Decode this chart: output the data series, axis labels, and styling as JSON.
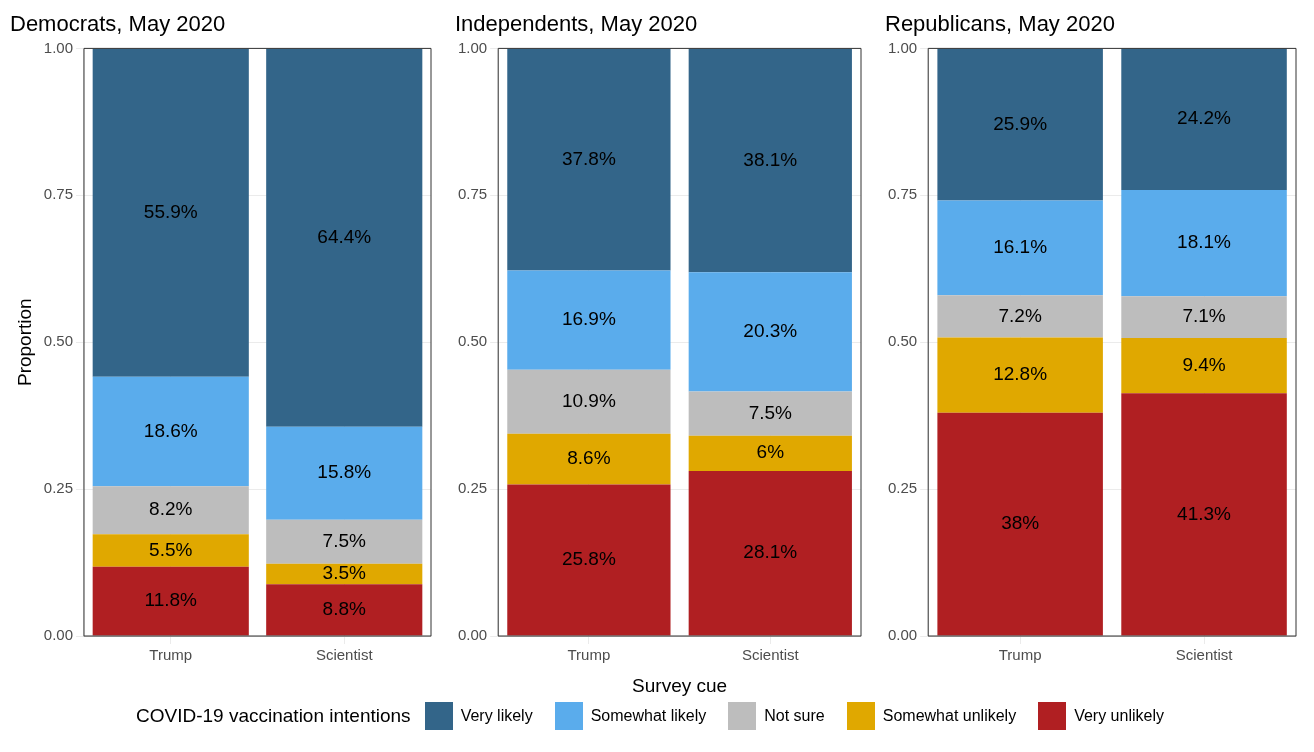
{
  "chart_data": [
    {
      "type": "bar",
      "title": "Democrats, May 2020",
      "ylabel": "Proportion",
      "categories": [
        "Trump",
        "Scientist"
      ],
      "stacked": true,
      "ylim": [
        0,
        1
      ],
      "yticks": [
        {
          "value": 0,
          "label": "0.00"
        },
        {
          "value": 0.25,
          "label": "0.25"
        },
        {
          "value": 0.5,
          "label": "0.50"
        },
        {
          "value": 0.75,
          "label": "0.75"
        },
        {
          "value": 1,
          "label": "1.00"
        }
      ],
      "grid": true,
      "legend": false,
      "series": [
        {
          "color": "#b01f22",
          "values": [
            0.118,
            0.088
          ],
          "value_labels": [
            "11.8%",
            "8.8%"
          ]
        },
        {
          "color": "#e0a800",
          "values": [
            0.055,
            0.035
          ],
          "value_labels": [
            "5.5%",
            "3.5%"
          ]
        },
        {
          "color": "#bdbdbd",
          "values": [
            0.082,
            0.075
          ],
          "value_labels": [
            "8.2%",
            "7.5%"
          ]
        },
        {
          "color": "#5aacec",
          "values": [
            0.186,
            0.158
          ],
          "value_labels": [
            "18.6%",
            "15.8%"
          ]
        },
        {
          "color": "#336589",
          "values": [
            0.559,
            0.644
          ],
          "value_labels": [
            "55.9%",
            "64.4%"
          ]
        }
      ]
    },
    {
      "type": "bar",
      "title": "Independents, May 2020",
      "xlabel": "Survey cue",
      "legend_title": "COVID-19 vaccination intentions",
      "categories": [
        "Trump",
        "Scientist"
      ],
      "stacked": true,
      "ylim": [
        0,
        1
      ],
      "yticks": [
        {
          "value": 0,
          "label": "0.00"
        },
        {
          "value": 0.25,
          "label": "0.25"
        },
        {
          "value": 0.5,
          "label": "0.50"
        },
        {
          "value": 0.75,
          "label": "0.75"
        },
        {
          "value": 1,
          "label": "1.00"
        }
      ],
      "grid": true,
      "legend": "bottom",
      "series": [
        {
          "name": "Very unlikely",
          "color": "#b01f22",
          "values": [
            0.258,
            0.281
          ],
          "value_labels": [
            "25.8%",
            "28.1%"
          ]
        },
        {
          "name": "Somewhat unlikely",
          "color": "#e0a800",
          "values": [
            0.086,
            0.06
          ],
          "value_labels": [
            "8.6%",
            "6%"
          ]
        },
        {
          "name": "Not sure",
          "color": "#bdbdbd",
          "values": [
            0.109,
            0.075
          ],
          "value_labels": [
            "10.9%",
            "7.5%"
          ]
        },
        {
          "name": "Somewhat likely",
          "color": "#5aacec",
          "values": [
            0.169,
            0.203
          ],
          "value_labels": [
            "16.9%",
            "20.3%"
          ]
        },
        {
          "name": "Very likely",
          "color": "#336589",
          "values": [
            0.378,
            0.381
          ],
          "value_labels": [
            "37.8%",
            "38.1%"
          ]
        }
      ]
    },
    {
      "type": "bar",
      "title": "Republicans, May 2020",
      "categories": [
        "Trump",
        "Scientist"
      ],
      "stacked": true,
      "ylim": [
        0,
        1
      ],
      "yticks": [
        {
          "value": 0,
          "label": "0.00"
        },
        {
          "value": 0.25,
          "label": "0.25"
        },
        {
          "value": 0.5,
          "label": "0.50"
        },
        {
          "value": 0.75,
          "label": "0.75"
        },
        {
          "value": 1,
          "label": "1.00"
        }
      ],
      "grid": true,
      "legend": false,
      "series": [
        {
          "color": "#b01f22",
          "values": [
            0.38,
            0.413
          ],
          "value_labels": [
            "38%",
            "41.3%"
          ]
        },
        {
          "color": "#e0a800",
          "values": [
            0.128,
            0.094
          ],
          "value_labels": [
            "12.8%",
            "9.4%"
          ]
        },
        {
          "color": "#bdbdbd",
          "values": [
            0.072,
            0.071
          ],
          "value_labels": [
            "7.2%",
            "7.1%"
          ]
        },
        {
          "color": "#5aacec",
          "values": [
            0.161,
            0.181
          ],
          "value_labels": [
            "16.1%",
            "18.1%"
          ]
        },
        {
          "color": "#336589",
          "values": [
            0.259,
            0.242
          ],
          "value_labels": [
            "25.9%",
            "24.2%"
          ]
        }
      ]
    }
  ]
}
